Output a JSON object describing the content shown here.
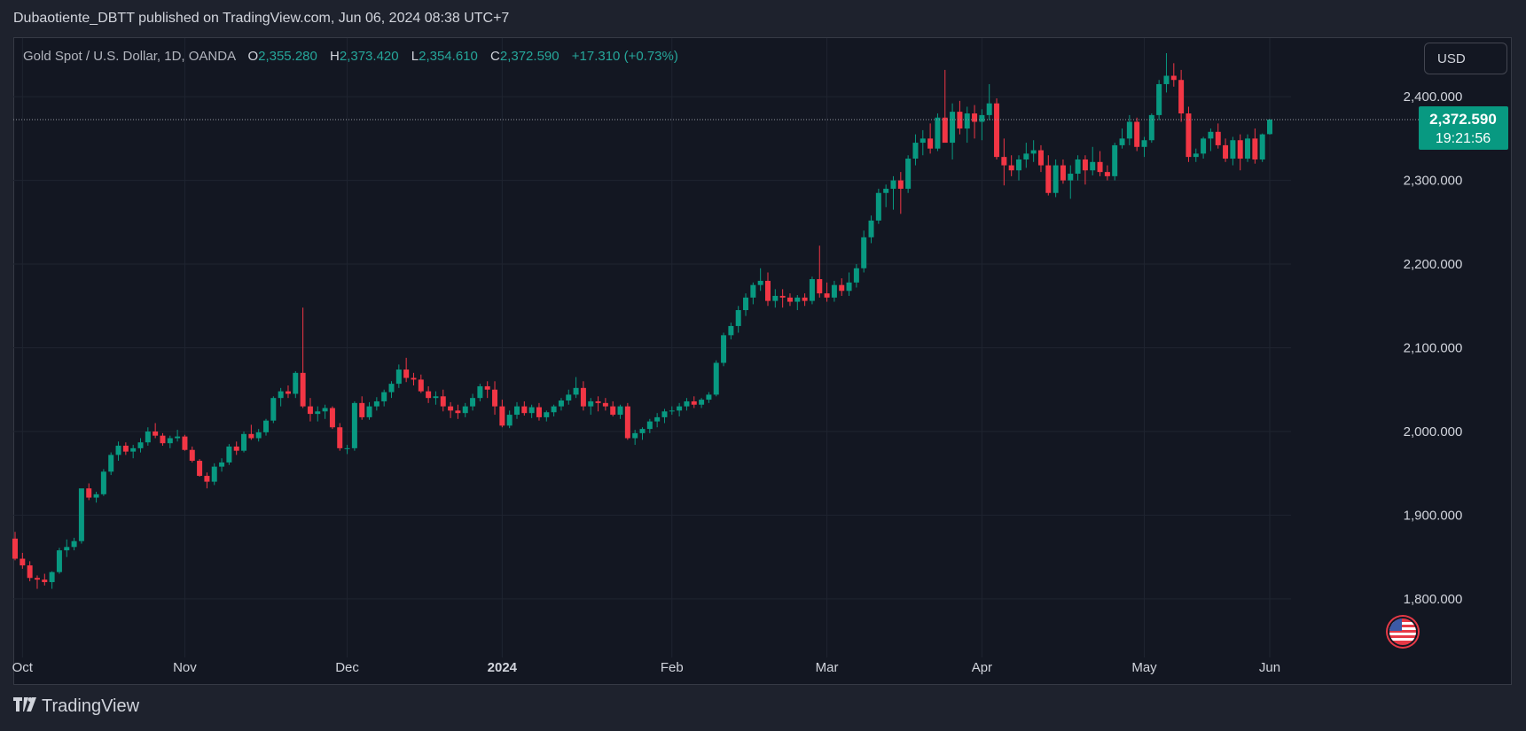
{
  "header": {
    "publisher_text": "Dubaotiente_DBTT published on TradingView.com, Jun 06, 2024 08:38 UTC+7"
  },
  "legend": {
    "symbol": "Gold Spot / U.S. Dollar, 1D, OANDA",
    "o_label": "O",
    "o_value": "2,355.280",
    "h_label": "H",
    "h_value": "2,373.420",
    "l_label": "L",
    "l_value": "2,354.610",
    "c_label": "C",
    "c_value": "2,372.590",
    "change": "+17.310 (+0.73%)"
  },
  "toolbar": {
    "currency_label": "USD"
  },
  "price_tag": {
    "price": "2,372.590",
    "countdown": "19:21:56",
    "color": "#089981"
  },
  "footer": {
    "brand": "TradingView",
    "logo_icon": "tradingview-logo-icon"
  },
  "colors": {
    "up": "#089981",
    "down": "#f23645",
    "background": "#131722",
    "grid": "#1f2430",
    "text": "#d1d4dc"
  },
  "chart_data": {
    "type": "candlestick",
    "symbol": "Gold Spot / U.S. Dollar",
    "interval": "1D",
    "ylim": [
      1730,
      2470
    ],
    "y_ticks": [
      1800,
      1900,
      2000,
      2100,
      2200,
      2300,
      2400
    ],
    "y_tick_labels": [
      "1,800.000",
      "1,900.000",
      "2,000.000",
      "2,100.000",
      "2,200.000",
      "2,300.000",
      "2,400.000"
    ],
    "x_labels": [
      {
        "label": "Oct",
        "date": "2023-10-02"
      },
      {
        "label": "Nov",
        "date": "2023-11-01"
      },
      {
        "label": "Dec",
        "date": "2023-12-01"
      },
      {
        "label": "2024",
        "date": "2024-01-01",
        "bold": true
      },
      {
        "label": "Feb",
        "date": "2024-02-01"
      },
      {
        "label": "Mar",
        "date": "2024-03-01"
      },
      {
        "label": "Apr",
        "date": "2024-04-01"
      },
      {
        "label": "May",
        "date": "2024-05-01"
      },
      {
        "label": "Jun",
        "date": "2024-06-03"
      }
    ],
    "last_price": 2372.59,
    "candles_ohlc": [
      [
        1872,
        1880,
        1846,
        1848
      ],
      [
        1848,
        1855,
        1836,
        1840
      ],
      [
        1840,
        1845,
        1821,
        1825
      ],
      [
        1825,
        1828,
        1812,
        1823
      ],
      [
        1823,
        1830,
        1816,
        1820
      ],
      [
        1820,
        1833,
        1812,
        1832
      ],
      [
        1832,
        1861,
        1830,
        1858
      ],
      [
        1858,
        1871,
        1850,
        1862
      ],
      [
        1862,
        1873,
        1858,
        1869
      ],
      [
        1869,
        1930,
        1866,
        1932
      ],
      [
        1932,
        1938,
        1918,
        1921
      ],
      [
        1921,
        1928,
        1915,
        1925
      ],
      [
        1925,
        1955,
        1923,
        1952
      ],
      [
        1952,
        1975,
        1948,
        1972
      ],
      [
        1972,
        1988,
        1965,
        1983
      ],
      [
        1983,
        1987,
        1972,
        1976
      ],
      [
        1976,
        1984,
        1968,
        1980
      ],
      [
        1980,
        1992,
        1975,
        1987
      ],
      [
        1987,
        2005,
        1983,
        2000
      ],
      [
        2000,
        2010,
        1992,
        1995
      ],
      [
        1995,
        1998,
        1983,
        1986
      ],
      [
        1986,
        1995,
        1980,
        1992
      ],
      [
        1992,
        2002,
        1988,
        1994
      ],
      [
        1994,
        1996,
        1977,
        1978
      ],
      [
        1978,
        1982,
        1963,
        1965
      ],
      [
        1965,
        1967,
        1946,
        1947
      ],
      [
        1947,
        1951,
        1932,
        1940
      ],
      [
        1940,
        1962,
        1936,
        1958
      ],
      [
        1958,
        1968,
        1952,
        1963
      ],
      [
        1963,
        1985,
        1960,
        1982
      ],
      [
        1982,
        1988,
        1972,
        1977
      ],
      [
        1977,
        2000,
        1975,
        1997
      ],
      [
        1997,
        2008,
        1990,
        1992
      ],
      [
        1992,
        2003,
        1988,
        1999
      ],
      [
        1999,
        2015,
        1995,
        2013
      ],
      [
        2013,
        2042,
        2010,
        2040
      ],
      [
        2040,
        2052,
        2030,
        2048
      ],
      [
        2048,
        2055,
        2040,
        2045
      ],
      [
        2045,
        2072,
        2040,
        2070
      ],
      [
        2070,
        2148,
        2028,
        2030
      ],
      [
        2030,
        2040,
        2012,
        2021
      ],
      [
        2021,
        2030,
        2012,
        2024
      ],
      [
        2024,
        2032,
        2015,
        2028
      ],
      [
        2028,
        2030,
        2003,
        2005
      ],
      [
        2005,
        2010,
        1977,
        1980
      ],
      [
        1980,
        1984,
        1973,
        1980
      ],
      [
        1980,
        2036,
        1977,
        2034
      ],
      [
        2034,
        2042,
        2014,
        2017
      ],
      [
        2017,
        2035,
        2014,
        2030
      ],
      [
        2030,
        2041,
        2025,
        2036
      ],
      [
        2036,
        2050,
        2030,
        2047
      ],
      [
        2047,
        2060,
        2040,
        2057
      ],
      [
        2057,
        2080,
        2052,
        2074
      ],
      [
        2074,
        2088,
        2059,
        2064
      ],
      [
        2064,
        2070,
        2055,
        2062
      ],
      [
        2062,
        2068,
        2046,
        2048
      ],
      [
        2048,
        2054,
        2034,
        2040
      ],
      [
        2040,
        2048,
        2032,
        2042
      ],
      [
        2042,
        2050,
        2024,
        2030
      ],
      [
        2030,
        2035,
        2016,
        2025
      ],
      [
        2025,
        2032,
        2015,
        2022
      ],
      [
        2022,
        2034,
        2017,
        2030
      ],
      [
        2030,
        2045,
        2025,
        2040
      ],
      [
        2040,
        2057,
        2036,
        2054
      ],
      [
        2054,
        2060,
        2040,
        2050
      ],
      [
        2050,
        2060,
        2020,
        2030
      ],
      [
        2030,
        2038,
        2005,
        2007
      ],
      [
        2007,
        2025,
        2004,
        2020
      ],
      [
        2020,
        2035,
        2015,
        2030
      ],
      [
        2030,
        2036,
        2019,
        2022
      ],
      [
        2022,
        2032,
        2016,
        2029
      ],
      [
        2029,
        2034,
        2013,
        2017
      ],
      [
        2017,
        2025,
        2012,
        2023
      ],
      [
        2023,
        2032,
        2018,
        2030
      ],
      [
        2030,
        2040,
        2025,
        2037
      ],
      [
        2037,
        2050,
        2032,
        2044
      ],
      [
        2044,
        2065,
        2040,
        2052
      ],
      [
        2052,
        2060,
        2025,
        2030
      ],
      [
        2030,
        2040,
        2020,
        2036
      ],
      [
        2036,
        2042,
        2024,
        2034
      ],
      [
        2034,
        2040,
        2025,
        2030
      ],
      [
        2030,
        2036,
        2018,
        2020
      ],
      [
        2020,
        2032,
        2015,
        2030
      ],
      [
        2030,
        2034,
        1990,
        1992
      ],
      [
        1992,
        2002,
        1984,
        1998
      ],
      [
        1998,
        2005,
        1990,
        2003
      ],
      [
        2003,
        2015,
        1998,
        2012
      ],
      [
        2012,
        2022,
        2005,
        2017
      ],
      [
        2017,
        2027,
        2010,
        2024
      ],
      [
        2024,
        2030,
        2020,
        2025
      ],
      [
        2025,
        2034,
        2018,
        2030
      ],
      [
        2030,
        2040,
        2025,
        2036
      ],
      [
        2036,
        2042,
        2028,
        2032
      ],
      [
        2032,
        2040,
        2028,
        2038
      ],
      [
        2038,
        2047,
        2034,
        2044
      ],
      [
        2044,
        2085,
        2042,
        2082
      ],
      [
        2082,
        2118,
        2078,
        2115
      ],
      [
        2115,
        2130,
        2110,
        2126
      ],
      [
        2126,
        2150,
        2118,
        2145
      ],
      [
        2145,
        2165,
        2138,
        2160
      ],
      [
        2160,
        2178,
        2152,
        2175
      ],
      [
        2175,
        2195,
        2168,
        2180
      ],
      [
        2180,
        2190,
        2150,
        2156
      ],
      [
        2156,
        2170,
        2148,
        2162
      ],
      [
        2162,
        2170,
        2148,
        2160
      ],
      [
        2160,
        2165,
        2150,
        2155
      ],
      [
        2155,
        2163,
        2145,
        2160
      ],
      [
        2160,
        2165,
        2150,
        2156
      ],
      [
        2156,
        2185,
        2152,
        2182
      ],
      [
        2182,
        2222,
        2160,
        2165
      ],
      [
        2165,
        2178,
        2155,
        2160
      ],
      [
        2160,
        2180,
        2155,
        2175
      ],
      [
        2175,
        2183,
        2162,
        2168
      ],
      [
        2168,
        2190,
        2162,
        2178
      ],
      [
        2178,
        2200,
        2172,
        2195
      ],
      [
        2195,
        2240,
        2190,
        2232
      ],
      [
        2232,
        2258,
        2225,
        2252
      ],
      [
        2252,
        2290,
        2248,
        2285
      ],
      [
        2285,
        2295,
        2268,
        2290
      ],
      [
        2290,
        2305,
        2265,
        2300
      ],
      [
        2300,
        2310,
        2260,
        2290
      ],
      [
        2290,
        2330,
        2285,
        2326
      ],
      [
        2326,
        2355,
        2318,
        2345
      ],
      [
        2345,
        2360,
        2330,
        2350
      ],
      [
        2350,
        2368,
        2332,
        2338
      ],
      [
        2338,
        2380,
        2335,
        2375
      ],
      [
        2375,
        2432,
        2352,
        2345
      ],
      [
        2345,
        2392,
        2325,
        2382
      ],
      [
        2382,
        2395,
        2355,
        2362
      ],
      [
        2362,
        2388,
        2345,
        2380
      ],
      [
        2380,
        2390,
        2350,
        2370
      ],
      [
        2370,
        2385,
        2348,
        2378
      ],
      [
        2378,
        2415,
        2372,
        2392
      ],
      [
        2392,
        2398,
        2325,
        2328
      ],
      [
        2328,
        2350,
        2294,
        2318
      ],
      [
        2318,
        2330,
        2305,
        2312
      ],
      [
        2312,
        2330,
        2300,
        2325
      ],
      [
        2325,
        2345,
        2315,
        2332
      ],
      [
        2332,
        2348,
        2322,
        2336
      ],
      [
        2336,
        2342,
        2310,
        2318
      ],
      [
        2318,
        2330,
        2282,
        2285
      ],
      [
        2285,
        2325,
        2280,
        2318
      ],
      [
        2318,
        2325,
        2296,
        2300
      ],
      [
        2300,
        2318,
        2278,
        2308
      ],
      [
        2308,
        2330,
        2300,
        2325
      ],
      [
        2325,
        2330,
        2295,
        2312
      ],
      [
        2312,
        2340,
        2306,
        2322
      ],
      [
        2322,
        2335,
        2305,
        2310
      ],
      [
        2310,
        2318,
        2300,
        2305
      ],
      [
        2305,
        2345,
        2300,
        2342
      ],
      [
        2342,
        2362,
        2338,
        2350
      ],
      [
        2350,
        2378,
        2342,
        2370
      ],
      [
        2370,
        2375,
        2335,
        2340
      ],
      [
        2340,
        2352,
        2328,
        2348
      ],
      [
        2348,
        2380,
        2345,
        2378
      ],
      [
        2378,
        2420,
        2372,
        2415
      ],
      [
        2415,
        2452,
        2405,
        2425
      ],
      [
        2425,
        2440,
        2412,
        2420
      ],
      [
        2420,
        2432,
        2370,
        2380
      ],
      [
        2380,
        2388,
        2322,
        2328
      ],
      [
        2328,
        2338,
        2322,
        2332
      ],
      [
        2332,
        2352,
        2326,
        2350
      ],
      [
        2350,
        2362,
        2335,
        2358
      ],
      [
        2358,
        2368,
        2338,
        2342
      ],
      [
        2342,
        2350,
        2322,
        2326
      ],
      [
        2326,
        2352,
        2318,
        2348
      ],
      [
        2348,
        2355,
        2312,
        2326
      ],
      [
        2326,
        2355,
        2322,
        2350
      ],
      [
        2350,
        2362,
        2320,
        2325
      ],
      [
        2325,
        2356,
        2322,
        2355
      ],
      [
        2355.28,
        2373.42,
        2354.61,
        2372.59
      ]
    ]
  }
}
